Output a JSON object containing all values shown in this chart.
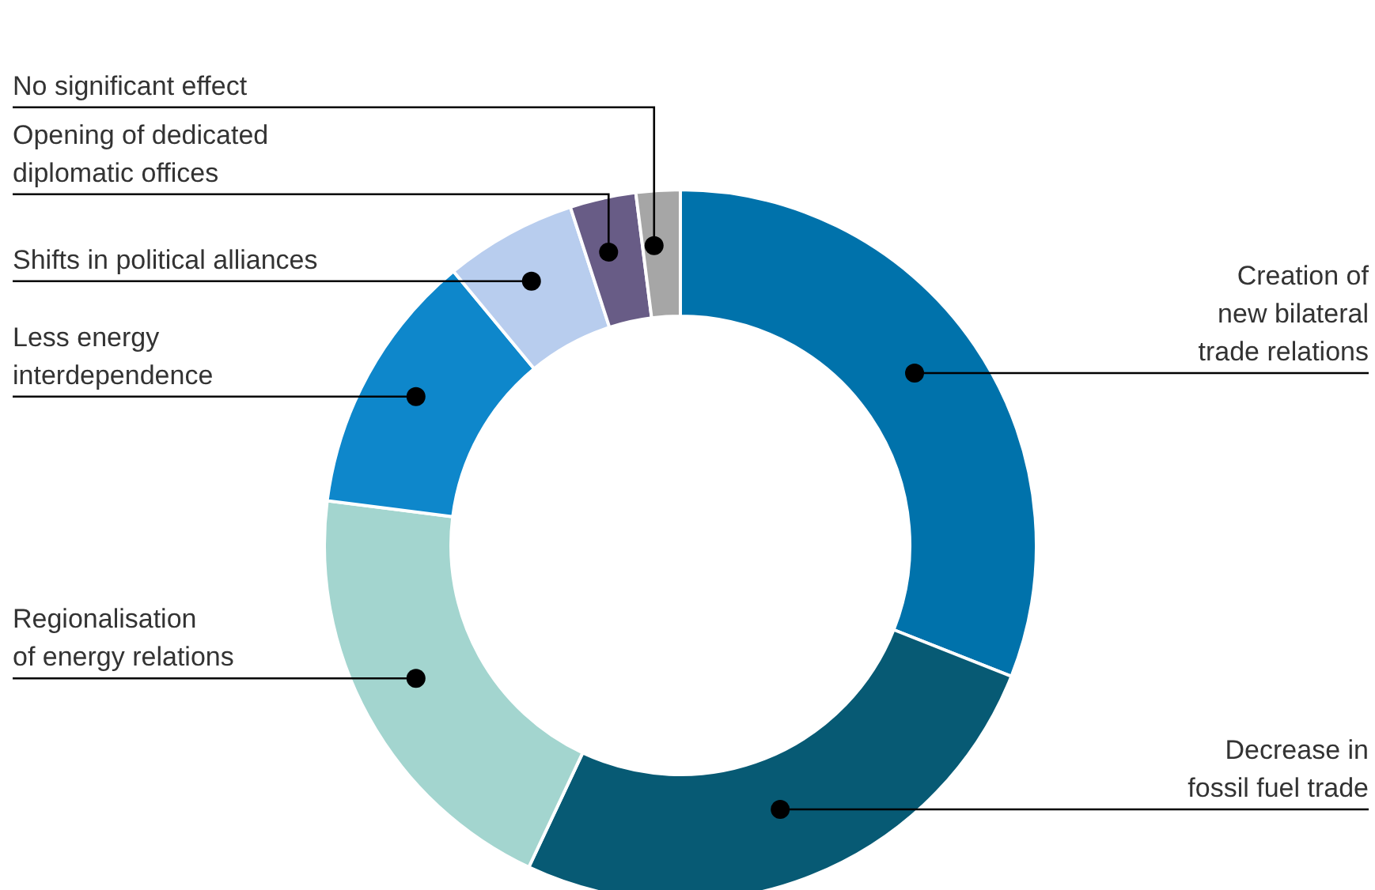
{
  "chart_data": {
    "type": "donut",
    "categories": [
      "Creation of\nnew bilateral\ntrade relations",
      "Decrease in\nfossil fuel trade",
      "Regionalisation\nof energy relations",
      "Less energy\ninterdependence",
      "Shifts in political alliances",
      "Opening of dedicated\ndiplomatic offices",
      "No significant effect"
    ],
    "values": [
      31,
      26,
      20,
      12,
      6,
      3,
      2
    ],
    "colors": [
      "#0072ab",
      "#075a74",
      "#a3d5cf",
      "#0e87cb",
      "#b8cdee",
      "#685c86",
      "#a6a6a6"
    ],
    "legend": false
  }
}
